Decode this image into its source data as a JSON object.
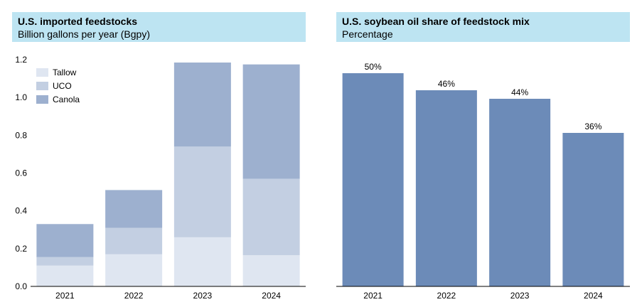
{
  "colors": {
    "tallow": "#dfe6f1",
    "uco": "#c3cfe2",
    "canola": "#9db0cf",
    "soy": "#6c8bb8",
    "header_bg": "#bde4f2"
  },
  "left_panel": {
    "title": "U.S. imported feedstocks",
    "subtitle": "Billion gallons per year (Bgpy)"
  },
  "right_panel": {
    "title": "U.S. soybean oil share of feedstock mix",
    "subtitle": "Percentage"
  },
  "chart_data": [
    {
      "type": "bar",
      "stacked": true,
      "title": "U.S. imported feedstocks",
      "subtitle": "Billion gallons per year (Bgpy)",
      "categories": [
        "2021",
        "2022",
        "2023",
        "2024"
      ],
      "series": [
        {
          "name": "Tallow",
          "color": "#dfe6f1",
          "values": [
            0.11,
            0.17,
            0.26,
            0.165
          ]
        },
        {
          "name": "UCO",
          "color": "#c3cfe2",
          "values": [
            0.045,
            0.14,
            0.48,
            0.405
          ]
        },
        {
          "name": "Canola",
          "color": "#9db0cf",
          "values": [
            0.175,
            0.2,
            0.445,
            0.605
          ]
        }
      ],
      "ylim": [
        0,
        1.2
      ],
      "yticks": [
        "0.0",
        "0.2",
        "0.4",
        "0.6",
        "0.8",
        "1.0",
        "1.2"
      ],
      "legend_position": "top-left",
      "grid": false
    },
    {
      "type": "bar",
      "title": "U.S. soybean oil share of feedstock mix",
      "subtitle": "Percentage",
      "categories": [
        "2021",
        "2022",
        "2023",
        "2024"
      ],
      "values": [
        50,
        46,
        44,
        36
      ],
      "data_labels": [
        "50%",
        "46%",
        "44%",
        "36%"
      ],
      "color": "#6c8bb8",
      "ylim": [
        0,
        55
      ],
      "grid": false
    }
  ]
}
